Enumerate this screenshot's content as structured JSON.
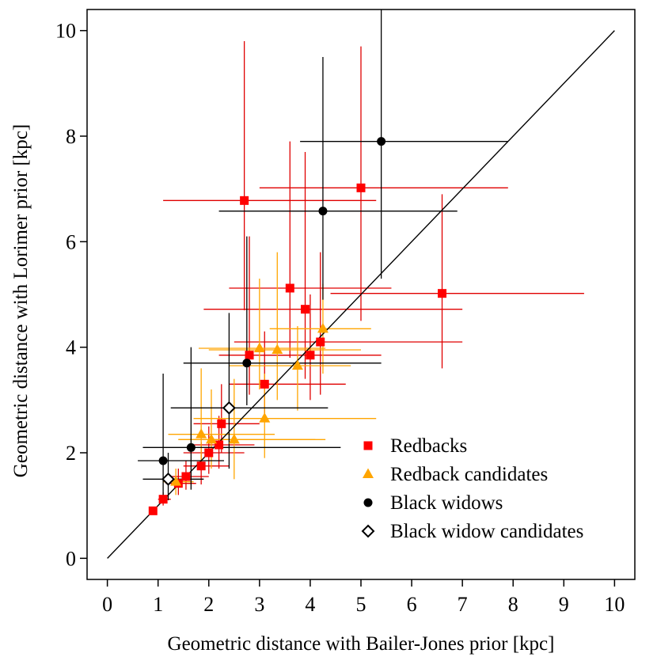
{
  "chart_data": {
    "type": "scatter",
    "xlabel": "Geometric distance with Bailer-Jones prior [kpc]",
    "ylabel": "Geometric distance with Lorimer prior [kpc]",
    "xlim": [
      -0.4,
      10.4
    ],
    "ylim": [
      -0.4,
      10.4
    ],
    "xticks": [
      "0",
      "1",
      "2",
      "3",
      "4",
      "5",
      "6",
      "7",
      "8",
      "9",
      "10"
    ],
    "yticks": [
      "0",
      "2",
      "4",
      "6",
      "8",
      "10"
    ],
    "reference_line": {
      "from": [
        0,
        0
      ],
      "to": [
        10,
        10
      ]
    },
    "legend_position": "bottom-right",
    "series": [
      {
        "name": "Redbacks",
        "marker": "square",
        "color": "#ff0000",
        "error_color": "#e00000",
        "points": [
          {
            "x": 0.9,
            "y": 0.9,
            "xerr": [
              0.85,
              0.95
            ],
            "yerr": [
              0.85,
              0.95
            ]
          },
          {
            "x": 1.1,
            "y": 1.12,
            "xerr": [
              1.0,
              1.25
            ],
            "yerr": [
              1.0,
              1.25
            ]
          },
          {
            "x": 1.4,
            "y": 1.42,
            "xerr": [
              1.15,
              1.75
            ],
            "yerr": [
              1.2,
              1.7
            ]
          },
          {
            "x": 1.55,
            "y": 1.55,
            "xerr": [
              1.25,
              2.0
            ],
            "yerr": [
              1.3,
              1.85
            ]
          },
          {
            "x": 1.85,
            "y": 1.75,
            "xerr": [
              1.5,
              2.4
            ],
            "yerr": [
              1.4,
              2.2
            ]
          },
          {
            "x": 2.0,
            "y": 2.0,
            "xerr": [
              1.5,
              2.7
            ],
            "yerr": [
              1.6,
              2.5
            ]
          },
          {
            "x": 2.2,
            "y": 2.15,
            "xerr": [
              1.7,
              2.9
            ],
            "yerr": [
              1.7,
              2.7
            ]
          },
          {
            "x": 2.25,
            "y": 2.55,
            "xerr": [
              1.7,
              3.0
            ],
            "yerr": [
              2.0,
              3.3
            ]
          },
          {
            "x": 2.7,
            "y": 6.78,
            "xerr": [
              1.1,
              5.3
            ],
            "yerr": [
              4.7,
              9.8
            ]
          },
          {
            "x": 2.8,
            "y": 3.85,
            "xerr": [
              2.2,
              3.6
            ],
            "yerr": [
              3.1,
              6.1
            ]
          },
          {
            "x": 3.1,
            "y": 3.3,
            "xerr": [
              2.4,
              4.7
            ],
            "yerr": [
              2.6,
              4.3
            ]
          },
          {
            "x": 3.6,
            "y": 5.12,
            "xerr": [
              2.4,
              5.6
            ],
            "yerr": [
              3.8,
              7.9
            ]
          },
          {
            "x": 3.9,
            "y": 4.72,
            "xerr": [
              1.9,
              7.0
            ],
            "yerr": [
              3.4,
              7.7
            ]
          },
          {
            "x": 4.0,
            "y": 3.85,
            "xerr": [
              3.0,
              5.4
            ],
            "yerr": [
              3.0,
              5.0
            ]
          },
          {
            "x": 4.2,
            "y": 4.1,
            "xerr": [
              2.5,
              7.0
            ],
            "yerr": [
              3.1,
              5.8
            ]
          },
          {
            "x": 5.0,
            "y": 7.02,
            "xerr": [
              3.0,
              7.9
            ],
            "yerr": [
              4.5,
              9.7
            ]
          },
          {
            "x": 6.6,
            "y": 5.02,
            "xerr": [
              4.4,
              9.4
            ],
            "yerr": [
              3.6,
              6.9
            ]
          }
        ]
      },
      {
        "name": "Redback candidates",
        "marker": "triangle",
        "color": "#ffa500",
        "error_color": "#ffa500",
        "points": [
          {
            "x": 1.35,
            "y": 1.45,
            "xerr": [
              1.1,
              1.7
            ],
            "yerr": [
              1.2,
              1.7
            ]
          },
          {
            "x": 1.85,
            "y": 2.35,
            "xerr": [
              1.2,
              3.3
            ],
            "yerr": [
              1.7,
              3.6
            ]
          },
          {
            "x": 2.05,
            "y": 2.25,
            "xerr": [
              1.4,
              4.3
            ],
            "yerr": [
              1.7,
              3.2
            ]
          },
          {
            "x": 2.5,
            "y": 2.25,
            "xerr": [
              1.4,
              4.1
            ],
            "yerr": [
              1.5,
              3.4
            ]
          },
          {
            "x": 3.0,
            "y": 3.98,
            "xerr": [
              1.8,
              4.3
            ],
            "yerr": [
              3.2,
              5.3
            ]
          },
          {
            "x": 3.1,
            "y": 2.65,
            "xerr": [
              1.7,
              5.3
            ],
            "yerr": [
              1.9,
              3.5
            ]
          },
          {
            "x": 3.35,
            "y": 3.95,
            "xerr": [
              2.0,
              5.0
            ],
            "yerr": [
              3.0,
              5.8
            ]
          },
          {
            "x": 3.75,
            "y": 3.65,
            "xerr": [
              2.4,
              4.8
            ],
            "yerr": [
              2.8,
              4.4
            ]
          },
          {
            "x": 4.25,
            "y": 4.35,
            "xerr": [
              3.2,
              5.2
            ],
            "yerr": [
              3.5,
              5.2
            ]
          }
        ]
      },
      {
        "name": "Black widows",
        "marker": "circle",
        "color": "#000000",
        "error_color": "#000000",
        "points": [
          {
            "x": 1.1,
            "y": 1.85,
            "xerr": [
              0.6,
              2.3
            ],
            "yerr": [
              1.1,
              3.5
            ]
          },
          {
            "x": 1.65,
            "y": 2.1,
            "xerr": [
              0.7,
              4.6
            ],
            "yerr": [
              1.3,
              4.0
            ]
          },
          {
            "x": 2.75,
            "y": 3.7,
            "xerr": [
              1.5,
              5.4
            ],
            "yerr": [
              2.9,
              6.1
            ]
          },
          {
            "x": 4.25,
            "y": 6.58,
            "xerr": [
              2.2,
              6.9
            ],
            "yerr": [
              4.9,
              9.5
            ]
          },
          {
            "x": 5.4,
            "y": 7.9,
            "xerr": [
              3.8,
              7.9
            ],
            "yerr": [
              5.3,
              10.4
            ]
          }
        ]
      },
      {
        "name": "Black widow candidates",
        "marker": "diamond",
        "color": "#000000",
        "error_color": "#000000",
        "points": [
          {
            "x": 1.2,
            "y": 1.5,
            "xerr": [
              0.7,
              1.9
            ],
            "yerr": [
              1.1,
              2.0
            ]
          },
          {
            "x": 2.4,
            "y": 2.85,
            "xerr": [
              1.25,
              4.35
            ],
            "yerr": [
              1.7,
              4.65
            ]
          }
        ]
      }
    ]
  }
}
